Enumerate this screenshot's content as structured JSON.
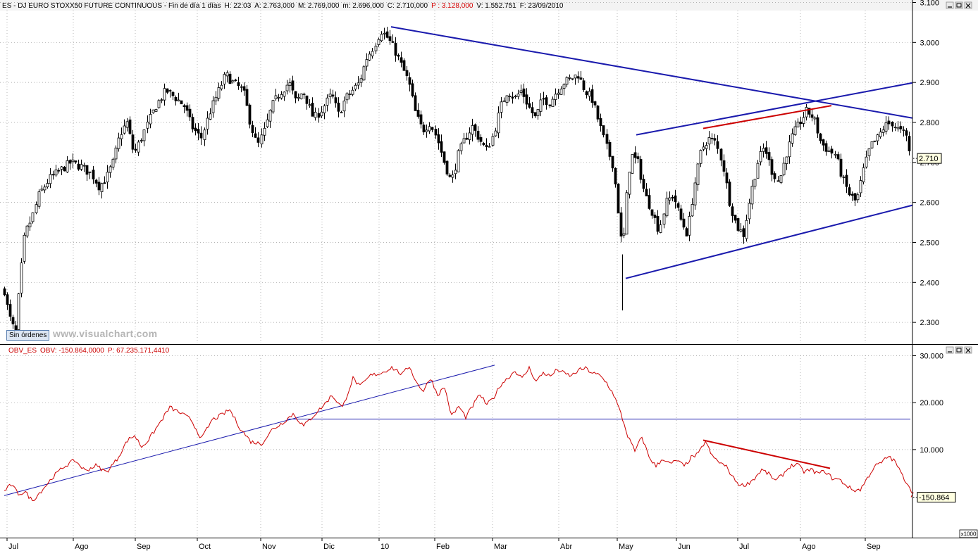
{
  "watermark": "www.visualchart.com",
  "orders_badge": "Sin órdenes",
  "chart_data": [
    {
      "type": "candlestick",
      "title": "ES - DJ EURO STOXX50 FUTURE CONTINUOUS - Fin de día 1 días",
      "stats": [
        {
          "label": "H:",
          "value": "22:03"
        },
        {
          "label": "A:",
          "value": "2.763,000"
        },
        {
          "label": "M:",
          "value": "2.769,000"
        },
        {
          "label": "m:",
          "value": "2.696,000"
        },
        {
          "label": "C:",
          "value": "2.710,000"
        },
        {
          "label": "P :",
          "value": "3.128,000",
          "color": "#d40000"
        },
        {
          "label": "V:",
          "value": "1.552.751"
        },
        {
          "label": "F:",
          "value": "23/09/2010"
        }
      ],
      "ylim": [
        2200,
        3100
      ],
      "yticks": [
        3100,
        3000,
        2900,
        2800,
        2700,
        2600,
        2500,
        2400,
        2300
      ],
      "ytick_labels": [
        "3.100",
        "3.000",
        "2.900",
        "2.800",
        "2.700",
        "2.600",
        "2.500",
        "2.400",
        "2.300"
      ],
      "last_value_label": "2.710",
      "last_value": 2710,
      "close_path": [
        [
          0,
          2420
        ],
        [
          6,
          2380
        ],
        [
          12,
          2320
        ],
        [
          18,
          2290
        ],
        [
          22,
          2270
        ],
        [
          28,
          2400
        ],
        [
          35,
          2520
        ],
        [
          45,
          2560
        ],
        [
          55,
          2620
        ],
        [
          70,
          2660
        ],
        [
          85,
          2680
        ],
        [
          100,
          2700
        ],
        [
          115,
          2690
        ],
        [
          130,
          2670
        ],
        [
          140,
          2640
        ],
        [
          150,
          2660
        ],
        [
          160,
          2700
        ],
        [
          170,
          2770
        ],
        [
          180,
          2800
        ],
        [
          190,
          2720
        ],
        [
          200,
          2760
        ],
        [
          210,
          2800
        ],
        [
          220,
          2840
        ],
        [
          235,
          2880
        ],
        [
          250,
          2860
        ],
        [
          262,
          2840
        ],
        [
          272,
          2790
        ],
        [
          285,
          2760
        ],
        [
          298,
          2830
        ],
        [
          310,
          2880
        ],
        [
          320,
          2920
        ],
        [
          330,
          2900
        ],
        [
          345,
          2880
        ],
        [
          355,
          2800
        ],
        [
          365,
          2740
        ],
        [
          375,
          2780
        ],
        [
          385,
          2840
        ],
        [
          395,
          2870
        ],
        [
          410,
          2900
        ],
        [
          420,
          2850
        ],
        [
          430,
          2880
        ],
        [
          445,
          2810
        ],
        [
          455,
          2830
        ],
        [
          470,
          2870
        ],
        [
          480,
          2820
        ],
        [
          490,
          2860
        ],
        [
          500,
          2880
        ],
        [
          510,
          2900
        ],
        [
          520,
          2960
        ],
        [
          530,
          2990
        ],
        [
          540,
          3030
        ],
        [
          550,
          3010
        ],
        [
          560,
          2980
        ],
        [
          570,
          2940
        ],
        [
          580,
          2900
        ],
        [
          590,
          2820
        ],
        [
          600,
          2780
        ],
        [
          610,
          2800
        ],
        [
          620,
          2760
        ],
        [
          630,
          2700
        ],
        [
          640,
          2650
        ],
        [
          650,
          2720
        ],
        [
          660,
          2760
        ],
        [
          670,
          2790
        ],
        [
          680,
          2760
        ],
        [
          690,
          2730
        ],
        [
          700,
          2770
        ],
        [
          710,
          2840
        ],
        [
          720,
          2880
        ],
        [
          730,
          2860
        ],
        [
          740,
          2880
        ],
        [
          750,
          2840
        ],
        [
          760,
          2810
        ],
        [
          770,
          2860
        ],
        [
          780,
          2850
        ],
        [
          790,
          2880
        ],
        [
          800,
          2900
        ],
        [
          810,
          2910
        ],
        [
          820,
          2920
        ],
        [
          830,
          2880
        ],
        [
          840,
          2860
        ],
        [
          850,
          2800
        ],
        [
          860,
          2740
        ],
        [
          870,
          2690
        ],
        [
          878,
          2560
        ],
        [
          883,
          2470
        ],
        [
          888,
          2600
        ],
        [
          895,
          2720
        ],
        [
          905,
          2700
        ],
        [
          915,
          2620
        ],
        [
          925,
          2580
        ],
        [
          935,
          2530
        ],
        [
          945,
          2600
        ],
        [
          955,
          2620
        ],
        [
          965,
          2560
        ],
        [
          975,
          2520
        ],
        [
          985,
          2640
        ],
        [
          995,
          2730
        ],
        [
          1005,
          2760
        ],
        [
          1015,
          2750
        ],
        [
          1025,
          2700
        ],
        [
          1035,
          2600
        ],
        [
          1045,
          2540
        ],
        [
          1055,
          2520
        ],
        [
          1065,
          2620
        ],
        [
          1075,
          2700
        ],
        [
          1085,
          2740
        ],
        [
          1095,
          2680
        ],
        [
          1105,
          2650
        ],
        [
          1115,
          2720
        ],
        [
          1125,
          2770
        ],
        [
          1135,
          2800
        ],
        [
          1145,
          2830
        ],
        [
          1155,
          2810
        ],
        [
          1165,
          2750
        ],
        [
          1175,
          2730
        ],
        [
          1185,
          2720
        ],
        [
          1195,
          2660
        ],
        [
          1205,
          2620
        ],
        [
          1215,
          2600
        ],
        [
          1225,
          2680
        ],
        [
          1235,
          2740
        ],
        [
          1245,
          2760
        ],
        [
          1255,
          2790
        ],
        [
          1265,
          2800
        ],
        [
          1275,
          2780
        ],
        [
          1285,
          2770
        ],
        [
          1292,
          2710
        ]
      ]
    },
    {
      "type": "line",
      "title": "OBV_ES",
      "stats": [
        {
          "label": "OBV:",
          "value": "-150.864,0000"
        },
        {
          "label": "P:",
          "value": "67.235.171,4410"
        }
      ],
      "unit": "x1000",
      "ylim": [
        -4000,
        30000
      ],
      "yticks": [
        30000,
        20000,
        10000
      ],
      "ytick_labels": [
        "30.000",
        "20.000",
        "10.000"
      ],
      "last_value_label": "-150.864",
      "last_value": -150.864,
      "series": [
        {
          "color": "#cc0000",
          "values": [
            [
              0,
              1200
            ],
            [
              10,
              2500
            ],
            [
              20,
              600
            ],
            [
              30,
              900
            ],
            [
              40,
              -900
            ],
            [
              55,
              1600
            ],
            [
              70,
              4300
            ],
            [
              85,
              6400
            ],
            [
              100,
              7700
            ],
            [
              115,
              5500
            ],
            [
              130,
              6600
            ],
            [
              145,
              5200
            ],
            [
              160,
              7900
            ],
            [
              175,
              12000
            ],
            [
              185,
              13000
            ],
            [
              195,
              10600
            ],
            [
              205,
              12100
            ],
            [
              220,
              15500
            ],
            [
              235,
              19000
            ],
            [
              250,
              17800
            ],
            [
              265,
              16400
            ],
            [
              280,
              12300
            ],
            [
              295,
              16300
            ],
            [
              310,
              17500
            ],
            [
              320,
              18500
            ],
            [
              335,
              14500
            ],
            [
              350,
              11700
            ],
            [
              365,
              11200
            ],
            [
              380,
              14200
            ],
            [
              395,
              15700
            ],
            [
              410,
              17600
            ],
            [
              425,
              15000
            ],
            [
              440,
              17400
            ],
            [
              455,
              19700
            ],
            [
              465,
              21600
            ],
            [
              480,
              18900
            ],
            [
              495,
              25200
            ],
            [
              505,
              23400
            ],
            [
              520,
              25800
            ],
            [
              535,
              26300
            ],
            [
              550,
              27500
            ],
            [
              565,
              26000
            ],
            [
              575,
              27800
            ],
            [
              585,
              24300
            ],
            [
              595,
              22500
            ],
            [
              605,
              25300
            ],
            [
              615,
              21700
            ],
            [
              625,
              23300
            ],
            [
              635,
              17100
            ],
            [
              645,
              19200
            ],
            [
              655,
              16900
            ],
            [
              665,
              19300
            ],
            [
              675,
              21800
            ],
            [
              685,
              19500
            ],
            [
              695,
              21200
            ],
            [
              705,
              23900
            ],
            [
              715,
              25300
            ],
            [
              725,
              26800
            ],
            [
              735,
              25100
            ],
            [
              745,
              27400
            ],
            [
              755,
              24500
            ],
            [
              765,
              26400
            ],
            [
              775,
              25600
            ],
            [
              785,
              27100
            ],
            [
              795,
              26200
            ],
            [
              805,
              25700
            ],
            [
              815,
              26900
            ],
            [
              825,
              27300
            ],
            [
              835,
              26300
            ],
            [
              845,
              25800
            ],
            [
              855,
              24200
            ],
            [
              865,
              21700
            ],
            [
              875,
              17700
            ],
            [
              885,
              12900
            ],
            [
              895,
              9600
            ],
            [
              905,
              12700
            ],
            [
              915,
              8500
            ],
            [
              925,
              6400
            ],
            [
              935,
              8100
            ],
            [
              945,
              6900
            ],
            [
              955,
              7700
            ],
            [
              965,
              6400
            ],
            [
              975,
              8300
            ],
            [
              985,
              9000
            ],
            [
              995,
              11800
            ],
            [
              1005,
              8500
            ],
            [
              1015,
              7300
            ],
            [
              1025,
              6300
            ],
            [
              1035,
              3900
            ],
            [
              1045,
              2300
            ],
            [
              1055,
              2700
            ],
            [
              1065,
              3900
            ],
            [
              1075,
              5700
            ],
            [
              1085,
              4800
            ],
            [
              1095,
              3300
            ],
            [
              1105,
              4700
            ],
            [
              1115,
              6400
            ],
            [
              1125,
              6900
            ],
            [
              1135,
              5300
            ],
            [
              1145,
              5700
            ],
            [
              1155,
              4900
            ],
            [
              1165,
              5400
            ],
            [
              1175,
              3900
            ],
            [
              1185,
              3600
            ],
            [
              1195,
              2400
            ],
            [
              1205,
              1300
            ],
            [
              1215,
              1500
            ],
            [
              1225,
              3900
            ],
            [
              1235,
              6400
            ],
            [
              1245,
              7200
            ],
            [
              1255,
              8600
            ],
            [
              1265,
              7300
            ],
            [
              1275,
              4300
            ],
            [
              1285,
              2100
            ],
            [
              1292,
              -150
            ]
          ]
        }
      ]
    }
  ],
  "x_axis": {
    "labels": [
      "Jul",
      "Ago",
      "Sep",
      "Oct",
      "Nov",
      "Dic",
      "10",
      "Feb",
      "Mar",
      "Abr",
      "May",
      "Jun",
      "Jul",
      "Ago",
      "Sep"
    ],
    "positions": [
      10,
      104,
      192,
      280,
      370,
      457,
      538,
      617,
      699,
      793,
      876,
      960,
      1047,
      1136,
      1228
    ]
  },
  "drawings": {
    "price": [
      {
        "color": "#1a1aad",
        "from": [
          555,
          3039
        ],
        "to": [
          1295,
          2811
        ]
      },
      {
        "color": "#1a1aad",
        "from": [
          903,
          2769
        ],
        "to": [
          1295,
          2899
        ]
      },
      {
        "color": "#1a1aad",
        "from": [
          888,
          2410
        ],
        "to": [
          1295,
          2593
        ]
      },
      {
        "color": "#cc0000",
        "from": [
          998,
          2785
        ],
        "to": [
          1180,
          2842
        ]
      }
    ],
    "obv": [
      {
        "color": "#1a1aad",
        "from": [
          6,
          200
        ],
        "to": [
          702,
          28000
        ]
      },
      {
        "color": "#1a1aad",
        "from": [
          408,
          16500
        ],
        "to": [
          1292,
          16500
        ]
      },
      {
        "color": "#cc0000",
        "from": [
          998,
          12000
        ],
        "to": [
          1178,
          6000
        ]
      }
    ]
  }
}
